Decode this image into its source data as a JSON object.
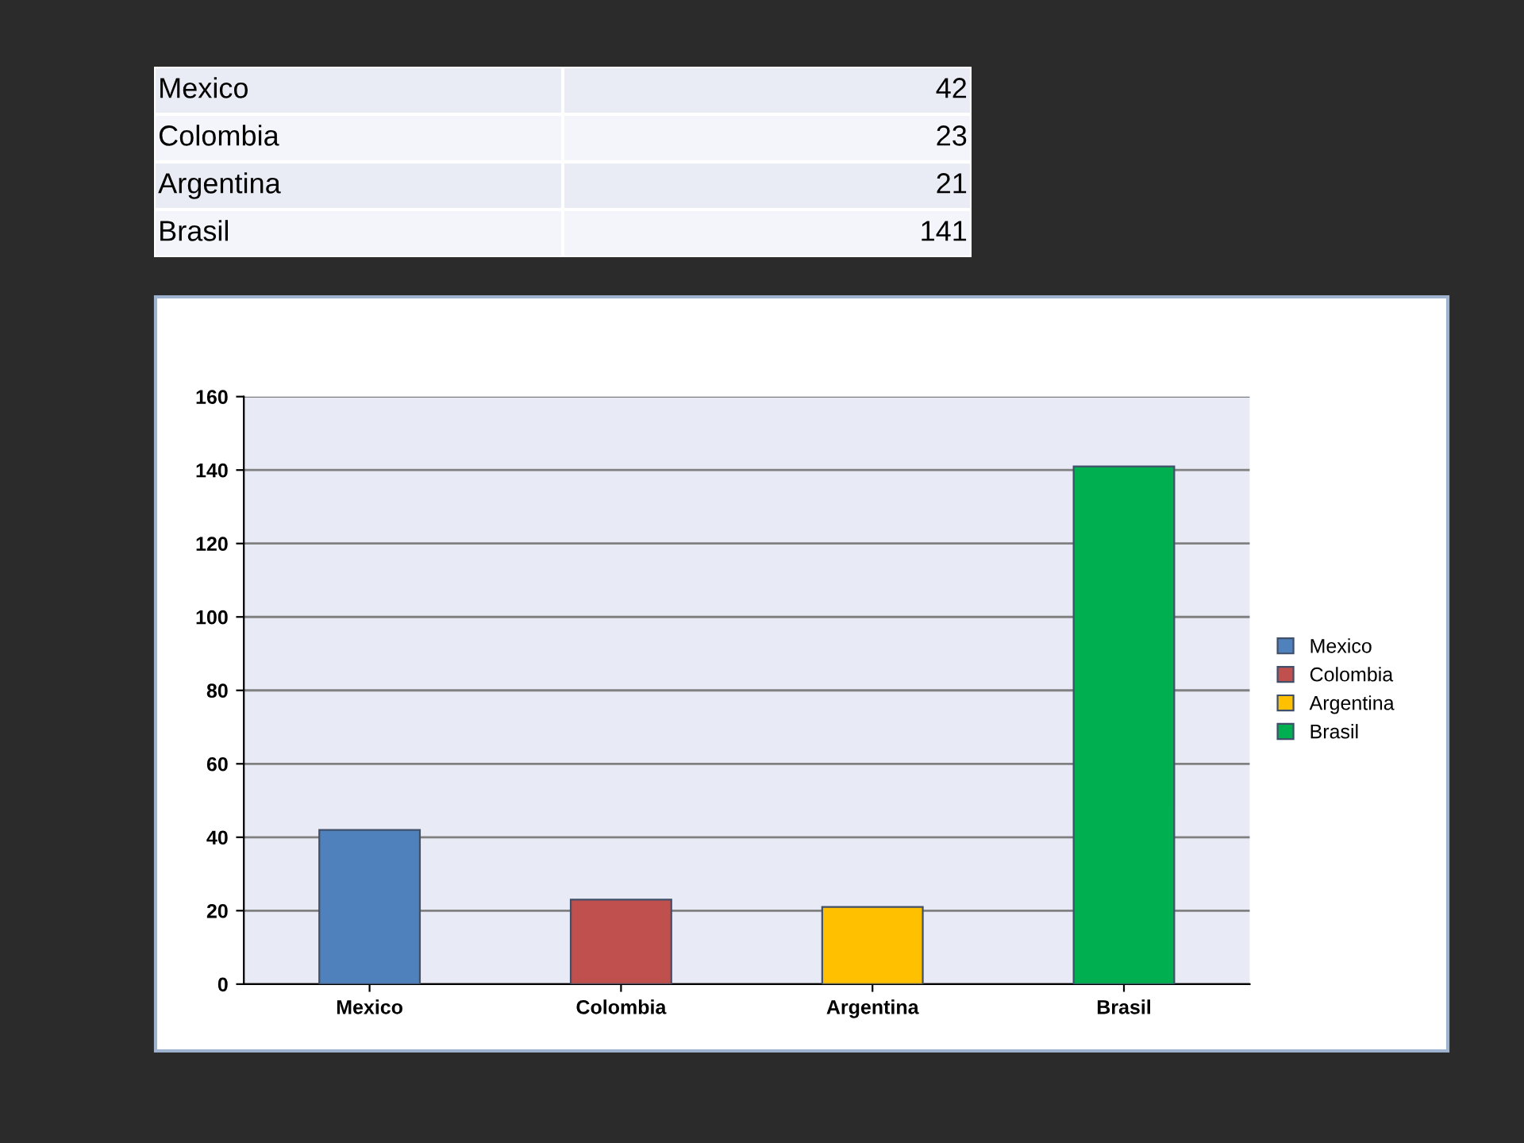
{
  "chart_data": [
    {
      "type": "other",
      "categories": [
        "Mexico",
        "Colombia",
        "Argentina",
        "Brasil"
      ],
      "values": [
        42,
        23,
        21,
        141
      ],
      "data_labels": true
    },
    {
      "type": "bar",
      "categories": [
        "Mexico",
        "Colombia",
        "Argentina",
        "Brasil"
      ],
      "series": [
        {
          "name": "Mexico",
          "color": "#4f81bd",
          "values": [
            42,
            null,
            null,
            null
          ]
        },
        {
          "name": "Colombia",
          "color": "#c0504d",
          "values": [
            null,
            23,
            null,
            null
          ]
        },
        {
          "name": "Argentina",
          "color": "#ffc000",
          "values": [
            null,
            null,
            21,
            null
          ]
        },
        {
          "name": "Brasil",
          "color": "#00b050",
          "values": [
            null,
            null,
            null,
            141
          ]
        }
      ],
      "ylim": [
        0,
        160
      ],
      "yticks": [
        0,
        20,
        40,
        60,
        80,
        100,
        120,
        140,
        160
      ],
      "grid": "y",
      "legend": "right"
    }
  ]
}
